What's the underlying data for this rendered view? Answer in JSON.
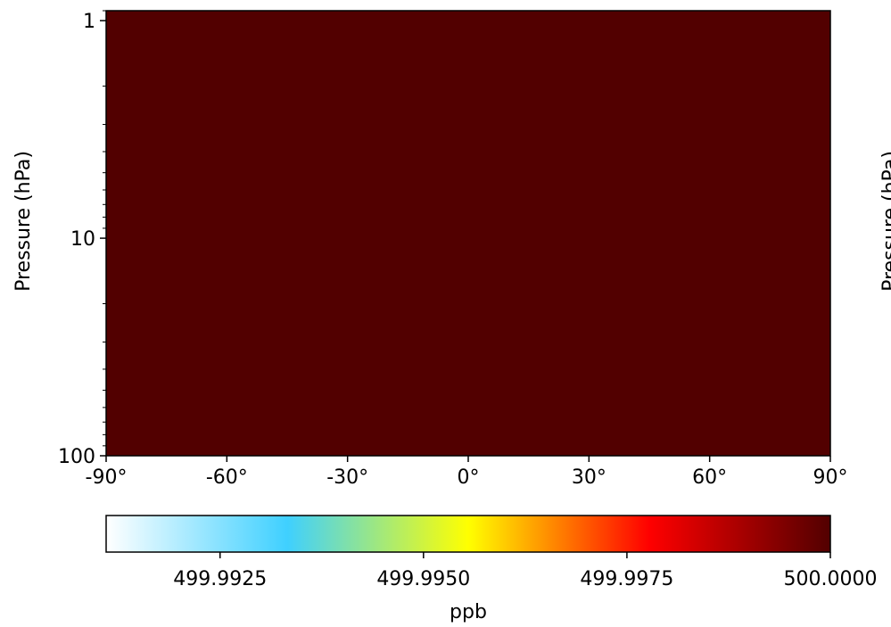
{
  "chart_data": {
    "type": "heatmap",
    "x": {
      "range": [
        -90,
        90
      ],
      "ticks": [
        -90,
        -60,
        -30,
        0,
        30,
        60,
        90
      ],
      "tick_labels": [
        "-90°",
        "-60°",
        "-30°",
        "0°",
        "30°",
        "60°",
        "90°"
      ]
    },
    "y": {
      "label": "Pressure (hPa)",
      "scale": "log",
      "inverted": true,
      "range": [
        100,
        0.9
      ],
      "ticks": [
        1,
        10,
        100
      ],
      "tick_labels": [
        "1",
        "10",
        "100"
      ]
    },
    "field": {
      "value": 500.0,
      "uniform": true
    },
    "colorbar": {
      "label": "ppb",
      "range": [
        499.9911,
        500.0
      ],
      "ticks": [
        499.9925,
        499.995,
        499.9975,
        500.0
      ],
      "tick_labels": [
        "499.9925",
        "499.9950",
        "499.9975",
        "500.0000"
      ],
      "colormap": "white-cyan-yellow-red-darkred",
      "colors": [
        "#ffffff",
        "#3fd0ff",
        "#ffff00",
        "#ff0000",
        "#520000"
      ]
    },
    "second_panel_ylabel_partial": "Pressure (hPa)"
  }
}
